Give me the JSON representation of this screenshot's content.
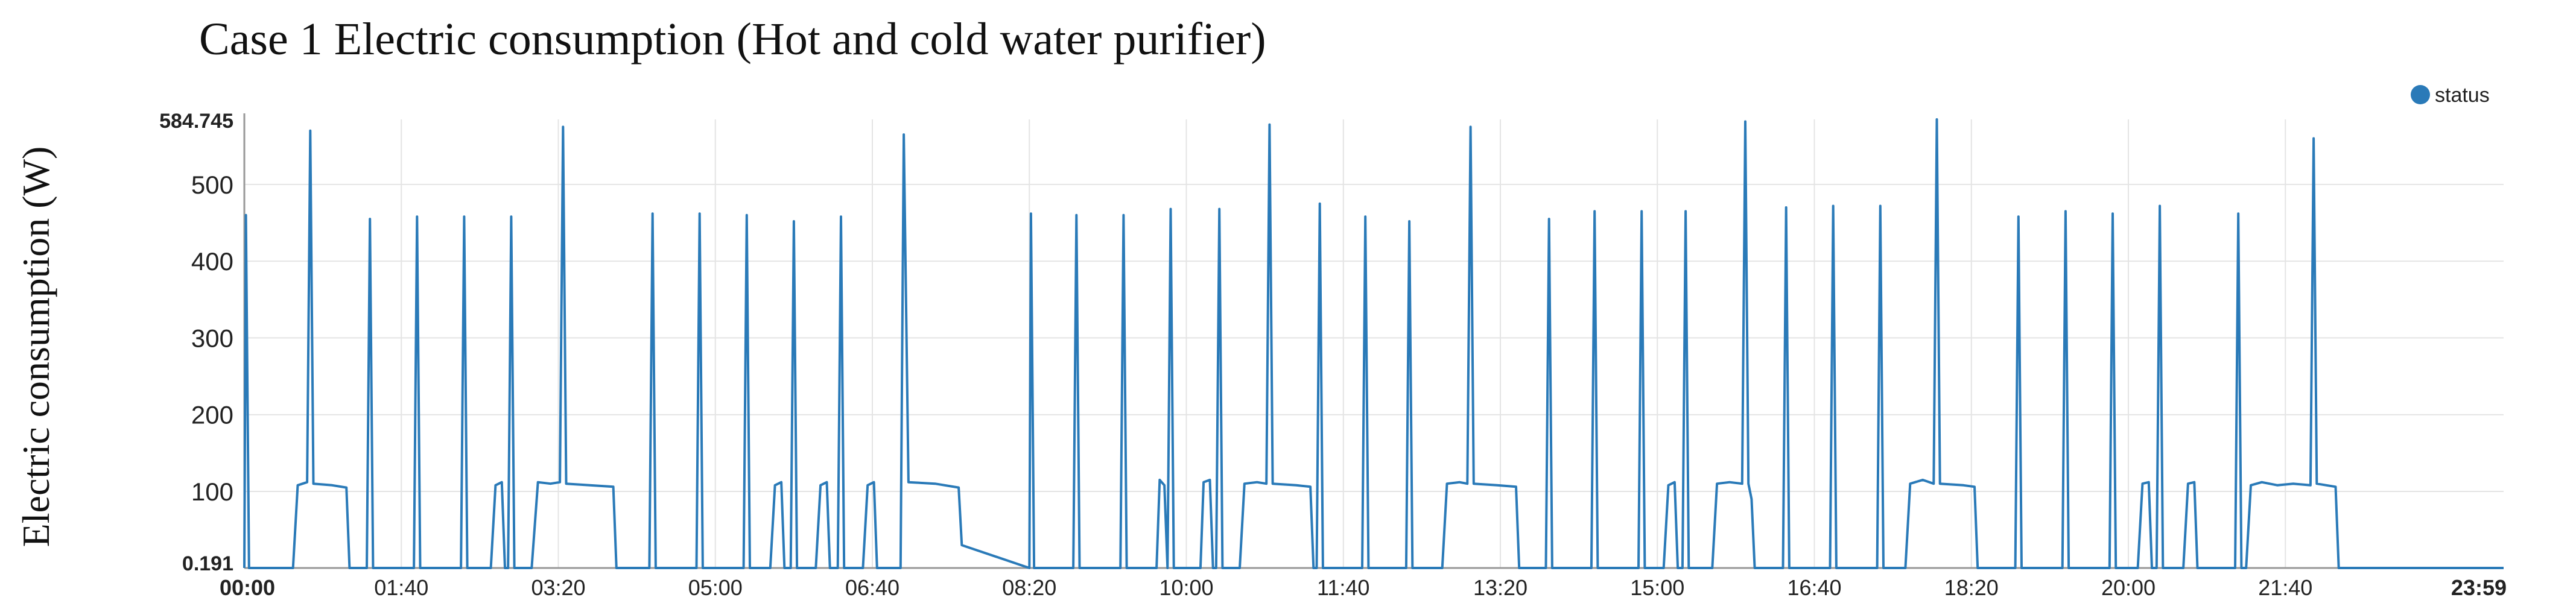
{
  "title": "Case 1 Electric  consumption (Hot and cold water purifier)",
  "chart_data": {
    "type": "line",
    "title": "Case 1 Electric  consumption (Hot and cold water purifier)",
    "xlabel": "",
    "ylabel": "Electric consumption (W)",
    "x_unit": "time of day (HH:MM)",
    "xlim": [
      "00:00",
      "23:59"
    ],
    "ylim": [
      0.191,
      584.745
    ],
    "yticks": [
      100,
      200,
      300,
      400,
      500
    ],
    "y_extreme_labels": [
      "0.191",
      "584.745"
    ],
    "xtick_labels": [
      "00:00",
      "01:40",
      "03:20",
      "05:00",
      "06:40",
      "08:20",
      "10:00",
      "11:40",
      "13:20",
      "15:00",
      "16:40",
      "18:20",
      "20:00",
      "21:40",
      "23:59"
    ],
    "grid": true,
    "legend_position": "top-right",
    "series": [
      {
        "name": "status",
        "color": "#2a7ab8",
        "points": [
          [
            "00:00",
            0.191
          ],
          [
            "00:01",
            460
          ],
          [
            "00:03",
            0.191
          ],
          [
            "00:31",
            0.191
          ],
          [
            "00:34",
            108
          ],
          [
            "00:40",
            112
          ],
          [
            "00:42",
            570
          ],
          [
            "00:44",
            110
          ],
          [
            "00:56",
            108
          ],
          [
            "01:05",
            105
          ],
          [
            "01:07",
            0.191
          ],
          [
            "01:18",
            0.191
          ],
          [
            "01:20",
            455
          ],
          [
            "01:22",
            0.191
          ],
          [
            "01:48",
            0.191
          ],
          [
            "01:50",
            458
          ],
          [
            "01:52",
            0.191
          ],
          [
            "02:18",
            0.191
          ],
          [
            "02:20",
            458
          ],
          [
            "02:22",
            0.191
          ],
          [
            "02:37",
            0.191
          ],
          [
            "02:40",
            108
          ],
          [
            "02:44",
            112
          ],
          [
            "02:46",
            0.191
          ],
          [
            "02:48",
            0.191
          ],
          [
            "02:50",
            458
          ],
          [
            "02:52",
            0.191
          ],
          [
            "03:03",
            0.191
          ],
          [
            "03:07",
            112
          ],
          [
            "03:15",
            110
          ],
          [
            "03:21",
            112
          ],
          [
            "03:23",
            575
          ],
          [
            "03:25",
            110
          ],
          [
            "03:40",
            108
          ],
          [
            "03:55",
            106
          ],
          [
            "03:57",
            0.191
          ],
          [
            "04:18",
            0.191
          ],
          [
            "04:20",
            462
          ],
          [
            "04:22",
            0.191
          ],
          [
            "04:48",
            0.191
          ],
          [
            "04:50",
            462
          ],
          [
            "04:52",
            0.191
          ],
          [
            "05:18",
            0.191
          ],
          [
            "05:20",
            460
          ],
          [
            "05:22",
            0.191
          ],
          [
            "05:35",
            0.191
          ],
          [
            "05:38",
            108
          ],
          [
            "05:42",
            112
          ],
          [
            "05:44",
            0.191
          ],
          [
            "05:48",
            0.191
          ],
          [
            "05:50",
            452
          ],
          [
            "05:52",
            0.191
          ],
          [
            "06:04",
            0.191
          ],
          [
            "06:07",
            108
          ],
          [
            "06:11",
            112
          ],
          [
            "06:13",
            0.191
          ],
          [
            "06:18",
            0.191
          ],
          [
            "06:20",
            458
          ],
          [
            "06:22",
            0.191
          ],
          [
            "06:34",
            0.191
          ],
          [
            "06:37",
            108
          ],
          [
            "06:41",
            112
          ],
          [
            "06:43",
            0.191
          ],
          [
            "06:58",
            0.191
          ],
          [
            "07:00",
            565
          ],
          [
            "07:03",
            112
          ],
          [
            "07:20",
            110
          ],
          [
            "07:35",
            105
          ],
          [
            "07:37",
            30
          ],
          [
            "08:20",
            0.191
          ],
          [
            "08:21",
            462
          ],
          [
            "08:23",
            0.191
          ],
          [
            "08:48",
            0.191
          ],
          [
            "08:50",
            460
          ],
          [
            "08:52",
            0.191
          ],
          [
            "09:18",
            0.191
          ],
          [
            "09:20",
            460
          ],
          [
            "09:22",
            0.191
          ],
          [
            "09:41",
            0.191
          ],
          [
            "09:43",
            115
          ],
          [
            "09:46",
            108
          ],
          [
            "09:48",
            0.191
          ],
          [
            "09:48",
            0.191
          ],
          [
            "09:50",
            468
          ],
          [
            "09:52",
            0.191
          ],
          [
            "10:09",
            0.191
          ],
          [
            "10:11",
            112
          ],
          [
            "10:15",
            115
          ],
          [
            "10:17",
            0.191
          ],
          [
            "10:19",
            0.191
          ],
          [
            "10:21",
            468
          ],
          [
            "10:23",
            0.191
          ],
          [
            "10:34",
            0.191
          ],
          [
            "10:37",
            110
          ],
          [
            "10:45",
            112
          ],
          [
            "10:51",
            110
          ],
          [
            "10:53",
            578
          ],
          [
            "10:55",
            110
          ],
          [
            "11:10",
            108
          ],
          [
            "11:19",
            106
          ],
          [
            "11:21",
            0.191
          ],
          [
            "11:23",
            0.191
          ],
          [
            "11:25",
            475
          ],
          [
            "11:27",
            0.191
          ],
          [
            "11:52",
            0.191
          ],
          [
            "11:54",
            458
          ],
          [
            "11:56",
            0.191
          ],
          [
            "12:20",
            0.191
          ],
          [
            "12:22",
            452
          ],
          [
            "12:24",
            0.191
          ],
          [
            "12:43",
            0.191
          ],
          [
            "12:46",
            110
          ],
          [
            "12:54",
            112
          ],
          [
            "12:59",
            110
          ],
          [
            "13:01",
            575
          ],
          [
            "13:03",
            110
          ],
          [
            "13:18",
            108
          ],
          [
            "13:30",
            106
          ],
          [
            "13:32",
            0.191
          ],
          [
            "13:49",
            0.191
          ],
          [
            "13:51",
            455
          ],
          [
            "13:53",
            0.191
          ],
          [
            "14:18",
            0.191
          ],
          [
            "14:20",
            465
          ],
          [
            "14:22",
            0.191
          ],
          [
            "14:48",
            0.191
          ],
          [
            "14:50",
            465
          ],
          [
            "14:52",
            0.191
          ],
          [
            "15:04",
            0.191
          ],
          [
            "15:07",
            108
          ],
          [
            "15:11",
            112
          ],
          [
            "15:13",
            0.191
          ],
          [
            "15:16",
            0.191
          ],
          [
            "15:18",
            465
          ],
          [
            "15:20",
            0.191
          ],
          [
            "15:35",
            0.191
          ],
          [
            "15:38",
            110
          ],
          [
            "15:46",
            112
          ],
          [
            "15:54",
            110
          ],
          [
            "15:56",
            582
          ],
          [
            "15:58",
            110
          ],
          [
            "16:00",
            90
          ],
          [
            "16:02",
            0.191
          ],
          [
            "16:20",
            0.191
          ],
          [
            "16:22",
            470
          ],
          [
            "16:24",
            0.191
          ],
          [
            "16:50",
            0.191
          ],
          [
            "16:52",
            472
          ],
          [
            "16:54",
            0.191
          ],
          [
            "17:20",
            0.191
          ],
          [
            "17:22",
            472
          ],
          [
            "17:24",
            0.191
          ],
          [
            "17:38",
            0.191
          ],
          [
            "17:41",
            110
          ],
          [
            "17:49",
            115
          ],
          [
            "17:56",
            110
          ],
          [
            "17:58",
            584.745
          ],
          [
            "18:00",
            110
          ],
          [
            "18:15",
            108
          ],
          [
            "18:22",
            106
          ],
          [
            "18:24",
            0.191
          ],
          [
            "18:48",
            0.191
          ],
          [
            "18:50",
            458
          ],
          [
            "18:52",
            0.191
          ],
          [
            "19:18",
            0.191
          ],
          [
            "19:20",
            465
          ],
          [
            "19:22",
            0.191
          ],
          [
            "19:48",
            0.191
          ],
          [
            "19:50",
            462
          ],
          [
            "19:52",
            0.191
          ],
          [
            "20:06",
            0.191
          ],
          [
            "20:09",
            110
          ],
          [
            "20:13",
            112
          ],
          [
            "20:15",
            0.191
          ],
          [
            "20:18",
            0.191
          ],
          [
            "20:20",
            472
          ],
          [
            "20:22",
            0.191
          ],
          [
            "20:35",
            0.191
          ],
          [
            "20:38",
            110
          ],
          [
            "20:42",
            112
          ],
          [
            "20:44",
            0.191
          ],
          [
            "21:08",
            0.191
          ],
          [
            "21:10",
            462
          ],
          [
            "21:12",
            0.191
          ],
          [
            "21:15",
            0.191
          ],
          [
            "21:18",
            108
          ],
          [
            "21:25",
            112
          ],
          [
            "21:35",
            108
          ],
          [
            "21:45",
            110
          ],
          [
            "21:56",
            108
          ],
          [
            "21:58",
            560
          ],
          [
            "22:00",
            110
          ],
          [
            "22:12",
            106
          ],
          [
            "22:14",
            0.191
          ],
          [
            "23:59",
            0.191
          ]
        ]
      }
    ]
  }
}
